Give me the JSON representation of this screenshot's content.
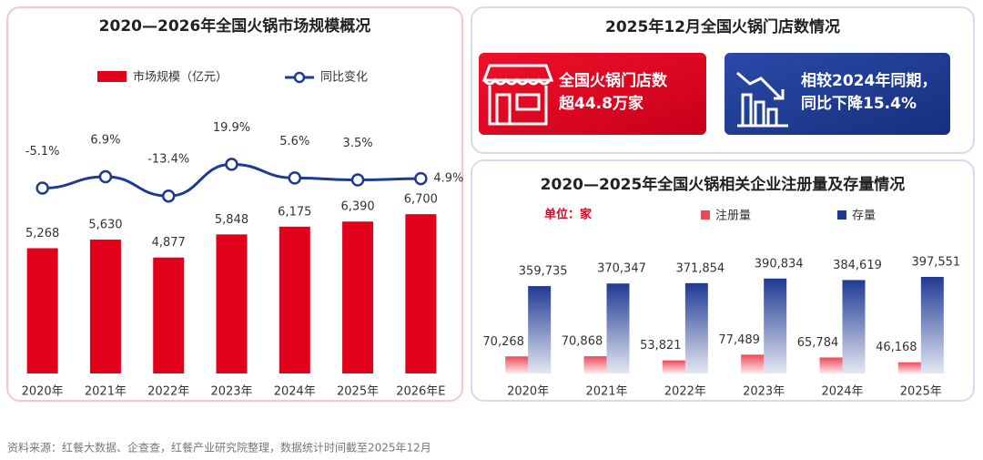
{
  "chart_data": [
    {
      "type": "combo",
      "title": "2020—2026年全国火锅市场规模概况",
      "categories": [
        "2020年",
        "2021年",
        "2022年",
        "2023年",
        "2024年",
        "2025年",
        "2026年E"
      ],
      "series": [
        {
          "name": "市场规模（亿元）",
          "color": "#e2001a",
          "values": [
            5268,
            5630,
            4877,
            5848,
            6175,
            6390,
            6700
          ],
          "value_labels": [
            "5,268",
            "5,630",
            "4,877",
            "5,848",
            "6,175",
            "6,390",
            "6,700"
          ]
        },
        {
          "name": "同比变化",
          "color": "#1f3a93",
          "axis": "y2",
          "values": [
            -5.1,
            6.9,
            -13.4,
            19.9,
            5.6,
            3.5,
            4.9
          ],
          "value_labels": [
            "-5.1%",
            "6.9%",
            "-13.4%",
            "19.9%",
            "5.6%",
            "3.5%",
            "4.9%"
          ]
        }
      ],
      "ylim": [
        0,
        10000
      ],
      "y2lim": [
        -200,
        50
      ]
    },
    {
      "type": "bar",
      "title": "2020—2025年全国火锅相关企业注册量及存量情况",
      "unit": "单位：家",
      "categories": [
        "2020年",
        "2021年",
        "2022年",
        "2023年",
        "2024年",
        "2025年"
      ],
      "series": [
        {
          "name": "注册量",
          "color": "#ec4a5a",
          "values": [
            70268,
            70868,
            53821,
            77489,
            65784,
            46168
          ],
          "value_labels": [
            "70,268",
            "70,868",
            "53,821",
            "77,489",
            "65,784",
            "46,168"
          ]
        },
        {
          "name": "存量",
          "color": "#1f3a93",
          "values": [
            359735,
            370347,
            371854,
            390834,
            384619,
            397551
          ],
          "value_labels": [
            "359,735",
            "370,347",
            "371,854",
            "390,834",
            "384,619",
            "397,551"
          ]
        }
      ],
      "ylim": [
        0,
        600000
      ]
    }
  ],
  "store_panel": {
    "title": "2025年12月全国火锅门店数情况",
    "cards": [
      {
        "lines": [
          "全国火锅门店数",
          "超44.8万家"
        ]
      },
      {
        "lines": [
          "相较2024年同期，",
          "同比下降15.4%"
        ]
      }
    ]
  },
  "source": "资料来源：红餐大数据、企查查，红餐产业研究院整理，数据统计时间截至2025年12月"
}
